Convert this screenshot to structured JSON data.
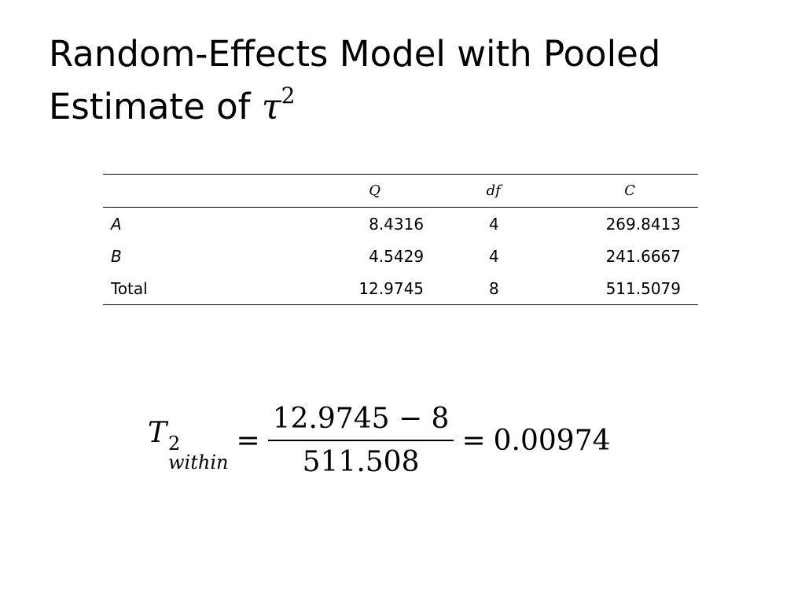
{
  "slide": {
    "title_text": "Random-Effects Model with Pooled Estimate of ",
    "title_symbol": "τ",
    "title_symbol_exp": "2"
  },
  "table": {
    "headers": [
      "",
      "Q",
      "df",
      "C"
    ],
    "rows": [
      {
        "label": "A",
        "q": "8.4316",
        "df": "4",
        "c": "269.8413"
      },
      {
        "label": "B",
        "q": "4.5429",
        "df": "4",
        "c": "241.6667"
      },
      {
        "label": "Total",
        "q": "12.9745",
        "df": "8",
        "c": "511.5079"
      }
    ]
  },
  "equation": {
    "lhs_symbol": "T",
    "lhs_sup": "2",
    "lhs_sub": "within",
    "equals": "=",
    "numerator": "12.9745 − 8",
    "denominator": "511.508",
    "result": "0.00974"
  }
}
